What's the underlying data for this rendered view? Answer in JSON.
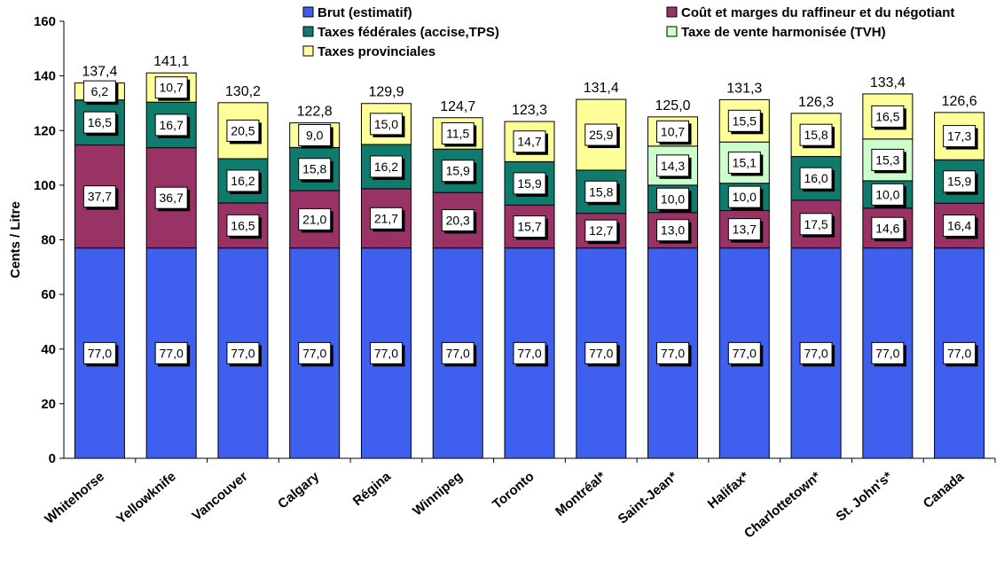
{
  "chart_data": {
    "type": "bar",
    "stacked": true,
    "ylabel": "Cents / Litre",
    "ylim": [
      0,
      160
    ],
    "yticks": [
      0,
      20,
      40,
      60,
      80,
      100,
      120,
      140,
      160
    ],
    "ytick_labels": [
      "0",
      "20",
      "40",
      "60",
      "80",
      "100",
      "120",
      "140",
      "160"
    ],
    "grid": false,
    "legend_position": "top",
    "categories": [
      "Whitehorse",
      "Yellowknife",
      "Vancouver",
      "Calgary",
      "Régina",
      "Winnipeg",
      "Toronto",
      "Montréal*",
      "Saint-Jean*",
      "Halifax*",
      "Charlottetown*",
      "St. John's*",
      "Canada"
    ],
    "series": [
      {
        "name": "Brut (estimatif)",
        "color": "#3f5fef",
        "values": [
          77.0,
          77.0,
          77.0,
          77.0,
          77.0,
          77.0,
          77.0,
          77.0,
          77.0,
          77.0,
          77.0,
          77.0,
          77.0
        ],
        "labels": [
          "77,0",
          "77,0",
          "77,0",
          "77,0",
          "77,0",
          "77,0",
          "77,0",
          "77,0",
          "77,0",
          "77,0",
          "77,0",
          "77,0",
          "77,0"
        ]
      },
      {
        "name": "Coût et marges du raffineur et du négotiant",
        "color": "#993366",
        "values": [
          37.7,
          36.7,
          16.5,
          21.0,
          21.7,
          20.3,
          15.7,
          12.7,
          13.0,
          13.7,
          17.5,
          14.6,
          16.4
        ],
        "labels": [
          "37,7",
          "36,7",
          "16,5",
          "21,0",
          "21,7",
          "20,3",
          "15,7",
          "12,7",
          "13,0",
          "13,7",
          "17,5",
          "14,6",
          "16,4"
        ]
      },
      {
        "name": "Taxes fédérales (accise,TPS)",
        "color": "#0f7b6c",
        "values": [
          16.5,
          16.7,
          16.2,
          15.8,
          16.2,
          15.9,
          15.9,
          15.8,
          10.0,
          10.0,
          16.0,
          10.0,
          15.9
        ],
        "labels": [
          "16,5",
          "16,7",
          "16,2",
          "15,8",
          "16,2",
          "15,9",
          "15,9",
          "15,8",
          "10,0",
          "10,0",
          "16,0",
          "10,0",
          "15,9"
        ]
      },
      {
        "name": "Taxe de vente harmonisée (TVH)",
        "color": "#ccffcc",
        "values": [
          0,
          0,
          0,
          0,
          0,
          0,
          0,
          0,
          14.3,
          15.1,
          0,
          15.3,
          0
        ],
        "labels": [
          "",
          "",
          "",
          "",
          "",
          "",
          "",
          "",
          "14,3",
          "15,1",
          "",
          "15,3",
          ""
        ]
      },
      {
        "name": "Taxes provinciales",
        "color": "#ffff99",
        "values": [
          6.2,
          10.7,
          20.5,
          9.0,
          15.0,
          11.5,
          14.7,
          25.9,
          10.7,
          15.5,
          15.8,
          16.5,
          17.3
        ],
        "labels": [
          "6,2",
          "10,7",
          "20,5",
          "9,0",
          "15,0",
          "11,5",
          "14,7",
          "25,9",
          "10,7",
          "15,5",
          "15,8",
          "16,5",
          "17,3"
        ]
      }
    ],
    "totals": [
      137.4,
      141.1,
      130.2,
      122.8,
      129.9,
      124.7,
      123.3,
      131.4,
      125.0,
      131.3,
      126.3,
      133.4,
      126.6
    ],
    "total_labels": [
      "137,4",
      "141,1",
      "130,2",
      "122,8",
      "129,9",
      "124,7",
      "123,3",
      "131,4",
      "125,0",
      "131,3",
      "126,3",
      "133,4",
      "126,6"
    ]
  }
}
